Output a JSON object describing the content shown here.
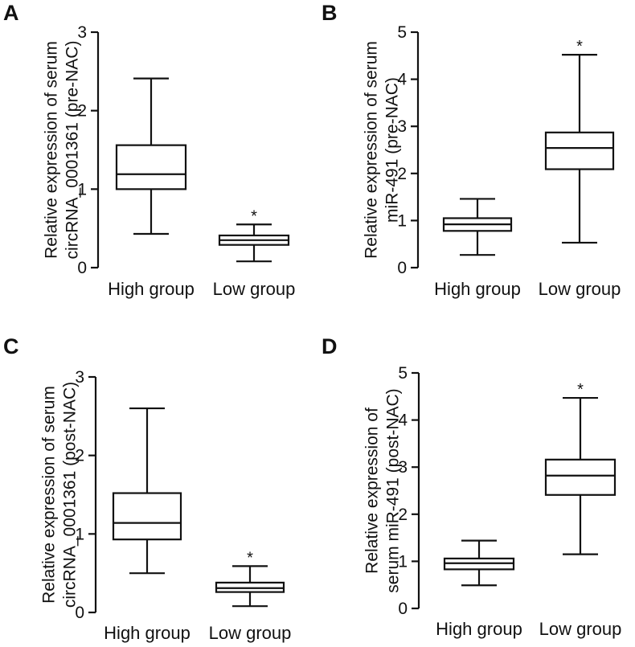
{
  "figure": {
    "panels": [
      {
        "letter": "A",
        "ylabel_lines": [
          "Relative expression of serum",
          "circRNA_0001361 (pre-NAC)"
        ],
        "ymax": 3,
        "yticks": [
          "0",
          "1",
          "2",
          "3"
        ],
        "categories": [
          "High group",
          "Low group"
        ]
      },
      {
        "letter": "B",
        "ylabel_lines": [
          "Relative expression of serum",
          "miR-491 (pre-NAC)"
        ],
        "ymax": 5,
        "yticks": [
          "0",
          "1",
          "2",
          "3",
          "4",
          "5"
        ],
        "categories": [
          "High group",
          "Low group"
        ]
      },
      {
        "letter": "C",
        "ylabel_lines": [
          "Relative expression of serum",
          "circRNA_0001361 (post-NAC)"
        ],
        "ymax": 3,
        "yticks": [
          "0",
          "1",
          "2",
          "3"
        ],
        "categories": [
          "High group",
          "Low group"
        ]
      },
      {
        "letter": "D",
        "ylabel_lines": [
          "Relative expression of",
          "serum miR-491 (post-NAC)"
        ],
        "ymax": 5,
        "yticks": [
          "0",
          "1",
          "2",
          "3",
          "4",
          "5"
        ],
        "categories": [
          "High group",
          "Low group"
        ]
      }
    ]
  },
  "chart_data": [
    {
      "type": "box",
      "panel": "A",
      "title": "",
      "xlabel": "",
      "ylabel": "Relative expression of serum circRNA_0001361 (pre-NAC)",
      "ylim": [
        0,
        3
      ],
      "categories": [
        "High group",
        "Low group"
      ],
      "boxes": [
        {
          "min": 0.43,
          "q1": 1.0,
          "median": 1.19,
          "q3": 1.56,
          "max": 2.41
        },
        {
          "min": 0.08,
          "q1": 0.29,
          "median": 0.35,
          "q3": 0.41,
          "max": 0.55
        }
      ],
      "annotations": [
        {
          "category": "Low group",
          "text": "*"
        }
      ]
    },
    {
      "type": "box",
      "panel": "B",
      "title": "",
      "xlabel": "",
      "ylabel": "Relative expression of serum miR-491 (pre-NAC)",
      "ylim": [
        0,
        5
      ],
      "categories": [
        "High group",
        "Low group"
      ],
      "boxes": [
        {
          "min": 0.27,
          "q1": 0.78,
          "median": 0.92,
          "q3": 1.05,
          "max": 1.46
        },
        {
          "min": 0.53,
          "q1": 2.09,
          "median": 2.54,
          "q3": 2.87,
          "max": 4.52
        }
      ],
      "annotations": [
        {
          "category": "Low group",
          "text": "*"
        }
      ]
    },
    {
      "type": "box",
      "panel": "C",
      "title": "",
      "xlabel": "",
      "ylabel": "Relative expression of serum circRNA_0001361 (post-NAC)",
      "ylim": [
        0,
        3
      ],
      "categories": [
        "High group",
        "Low group"
      ],
      "boxes": [
        {
          "min": 0.5,
          "q1": 0.93,
          "median": 1.14,
          "q3": 1.52,
          "max": 2.6
        },
        {
          "min": 0.08,
          "q1": 0.26,
          "median": 0.31,
          "q3": 0.38,
          "max": 0.59
        }
      ],
      "annotations": [
        {
          "category": "Low group",
          "text": "*"
        }
      ]
    },
    {
      "type": "box",
      "panel": "D",
      "title": "",
      "xlabel": "",
      "ylabel": "Relative expression of serum miR-491 (post-NAC)",
      "ylim": [
        0,
        5
      ],
      "categories": [
        "High group",
        "Low group"
      ],
      "boxes": [
        {
          "min": 0.49,
          "q1": 0.83,
          "median": 0.96,
          "q3": 1.06,
          "max": 1.44
        },
        {
          "min": 1.15,
          "q1": 2.41,
          "median": 2.82,
          "q3": 3.16,
          "max": 4.47
        }
      ],
      "annotations": [
        {
          "category": "Low group",
          "text": "*"
        }
      ]
    }
  ]
}
